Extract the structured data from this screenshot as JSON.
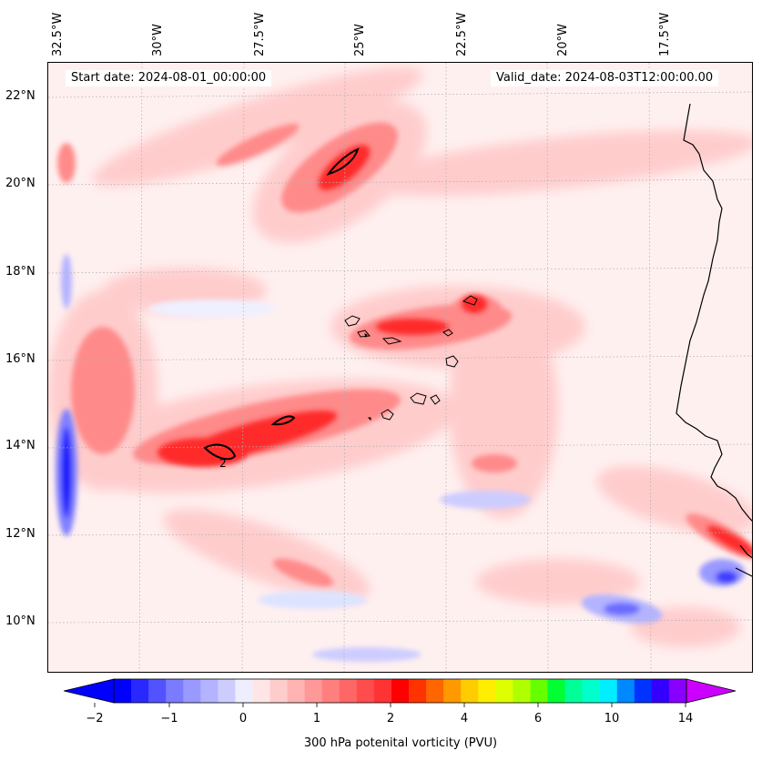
{
  "map": {
    "start_date": "Start date: 2024-08-01_00:00:00",
    "valid_date": "Valid_date: 2024-08-03T12:00:00.00",
    "lon_labels": [
      "32.5°W",
      "30°W",
      "27.5°W",
      "25°W",
      "22.5°W",
      "20°W",
      "17.5°W"
    ],
    "lat_labels": [
      "22°N",
      "20°N",
      "18°N",
      "16°N",
      "14°N",
      "12°N",
      "10°N"
    ],
    "contour_label": "2",
    "colors": {
      "background_field": "#fff0f0",
      "light_red": "#ffcccc",
      "mid_red": "#ff8a8a",
      "strong_red": "#ff3333",
      "deep_red": "#ff0000",
      "light_blue": "#dde3ff",
      "mid_blue": "#8080ff",
      "deep_blue": "#1a1aff",
      "coastline": "#000000"
    }
  },
  "colorbar": {
    "label": "300 hPa potenital vorticity (PVU)",
    "tick_labels": [
      "−2",
      "−1",
      "0",
      "1",
      "2",
      "4",
      "6",
      "10",
      "14"
    ],
    "colors": [
      "#0000ff",
      "#2929ff",
      "#5252ff",
      "#7b7bff",
      "#9999ff",
      "#b3b3ff",
      "#ccccff",
      "#eeeeff",
      "#ffe5e5",
      "#ffcccc",
      "#ffb3b3",
      "#ff9999",
      "#ff7f7f",
      "#ff6666",
      "#ff4c4c",
      "#ff3333",
      "#ff0000",
      "#ff3300",
      "#ff6600",
      "#ff9900",
      "#ffcc00",
      "#ffee00",
      "#ddff00",
      "#b0ff00",
      "#66ff00",
      "#00ff33",
      "#00ff99",
      "#00ffcc",
      "#00eeff",
      "#0088ff",
      "#0033ff",
      "#3300ff",
      "#8800ff"
    ],
    "low_extend_color": "#0000ff",
    "high_extend_color": "#cc00ff"
  }
}
